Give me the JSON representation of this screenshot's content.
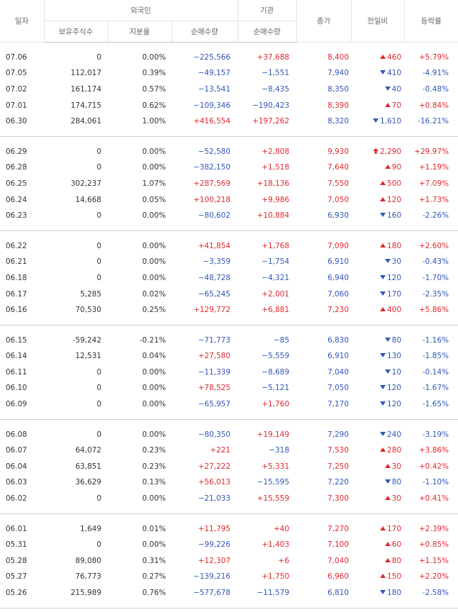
{
  "header": {
    "date": "일자",
    "foreign": "외국인",
    "holdings": "보유주식수",
    "share": "지분율",
    "foreign_net": "순매수량",
    "institution": "기관",
    "institution_net": "순매수량",
    "close": "종가",
    "change": "전일비",
    "rate": "등락률"
  },
  "groups": [
    {
      "rows": [
        [
          "07.06",
          "0",
          "0.00%",
          "−225,566",
          "+37,688",
          "8,400",
          "460",
          "+5.79%"
        ],
        [
          "07.05",
          "112,017",
          "0.39%",
          "−49,157",
          "−1,551",
          "7,940",
          "410",
          "-4.91%"
        ],
        [
          "07.02",
          "161,174",
          "0.57%",
          "−13,541",
          "−8,435",
          "8,350",
          "40",
          "-0.48%"
        ],
        [
          "07.01",
          "174,715",
          "0.62%",
          "−109,346",
          "−190,423",
          "8,390",
          "70",
          "+0.84%"
        ],
        [
          "06.30",
          "284,061",
          "1.00%",
          "+416,554",
          "+197,262",
          "8,320",
          "1,610",
          "-16.21%"
        ]
      ],
      "directions": [
        "up",
        "down",
        "down",
        "up",
        "down"
      ]
    },
    {
      "rows": [
        [
          "06.29",
          "0",
          "0.00%",
          "−52,580",
          "+2,808",
          "9,930",
          "2,290",
          "+29.97%"
        ],
        [
          "06.28",
          "0",
          "0.00%",
          "−382,150",
          "+1,518",
          "7,640",
          "90",
          "+1.19%"
        ],
        [
          "06.25",
          "302,237",
          "1.07%",
          "+287,569",
          "+18,136",
          "7,550",
          "500",
          "+7.09%"
        ],
        [
          "06.24",
          "14,668",
          "0.05%",
          "+100,218",
          "+9,986",
          "7,050",
          "120",
          "+1.73%"
        ],
        [
          "06.23",
          "0",
          "0.00%",
          "−80,602",
          "+10,884",
          "6,930",
          "160",
          "-2.26%"
        ]
      ],
      "directions": [
        "limit_up",
        "up",
        "up",
        "up",
        "down"
      ]
    },
    {
      "rows": [
        [
          "06.22",
          "0",
          "0.00%",
          "+41,854",
          "+1,768",
          "7,090",
          "180",
          "+2.60%"
        ],
        [
          "06.21",
          "0",
          "0.00%",
          "−3,359",
          "−1,754",
          "6,910",
          "30",
          "-0.43%"
        ],
        [
          "06.18",
          "0",
          "0.00%",
          "−48,728",
          "−4,321",
          "6,940",
          "120",
          "-1.70%"
        ],
        [
          "06.17",
          "5,285",
          "0.02%",
          "−65,245",
          "+2,001",
          "7,060",
          "170",
          "-2.35%"
        ],
        [
          "06.16",
          "70,530",
          "0.25%",
          "+129,772",
          "+6,881",
          "7,230",
          "400",
          "+5.86%"
        ]
      ],
      "directions": [
        "up",
        "down",
        "down",
        "down",
        "up"
      ]
    },
    {
      "rows": [
        [
          "06.15",
          "-59,242",
          "-0.21%",
          "−71,773",
          "−85",
          "6,830",
          "80",
          "-1.16%"
        ],
        [
          "06.14",
          "12,531",
          "0.04%",
          "+27,580",
          "−5,559",
          "6,910",
          "130",
          "-1.85%"
        ],
        [
          "06.11",
          "0",
          "0.00%",
          "−11,339",
          "−8,689",
          "7,040",
          "10",
          "-0.14%"
        ],
        [
          "06.10",
          "0",
          "0.00%",
          "+78,525",
          "−5,121",
          "7,050",
          "120",
          "-1.67%"
        ],
        [
          "06.09",
          "0",
          "0.00%",
          "−65,957",
          "+1,760",
          "7,170",
          "120",
          "-1.65%"
        ]
      ],
      "directions": [
        "down",
        "down",
        "down",
        "down",
        "down"
      ]
    },
    {
      "rows": [
        [
          "06.08",
          "0",
          "0.00%",
          "−80,350",
          "+19,149",
          "7,290",
          "240",
          "-3.19%"
        ],
        [
          "06.07",
          "64,072",
          "0.23%",
          "+221",
          "−318",
          "7,530",
          "280",
          "+3.86%"
        ],
        [
          "06.04",
          "63,851",
          "0.23%",
          "+27,222",
          "+5,331",
          "7,250",
          "30",
          "+0.42%"
        ],
        [
          "06.03",
          "36,629",
          "0.13%",
          "+56,013",
          "−15,595",
          "7,220",
          "80",
          "-1.10%"
        ],
        [
          "06.02",
          "0",
          "0.00%",
          "−21,033",
          "+15,559",
          "7,300",
          "30",
          "+0.41%"
        ]
      ],
      "directions": [
        "down",
        "up",
        "up",
        "down",
        "up"
      ]
    },
    {
      "rows": [
        [
          "06.01",
          "1,649",
          "0.01%",
          "+11,795",
          "+40",
          "7,270",
          "170",
          "+2.39%"
        ],
        [
          "05.31",
          "0",
          "0.00%",
          "−99,226",
          "+1,403",
          "7,100",
          "60",
          "+0.85%"
        ],
        [
          "05.28",
          "89,080",
          "0.31%",
          "+12,307",
          "+6",
          "7,040",
          "80",
          "+1.15%"
        ],
        [
          "05.27",
          "76,773",
          "0.27%",
          "−139,216",
          "+1,750",
          "6,960",
          "150",
          "+2.20%"
        ],
        [
          "05.26",
          "215,989",
          "0.76%",
          "−577,678",
          "−11,579",
          "6,810",
          "180",
          "-2.58%"
        ]
      ],
      "directions": [
        "up",
        "up",
        "up",
        "up",
        "down"
      ]
    }
  ]
}
